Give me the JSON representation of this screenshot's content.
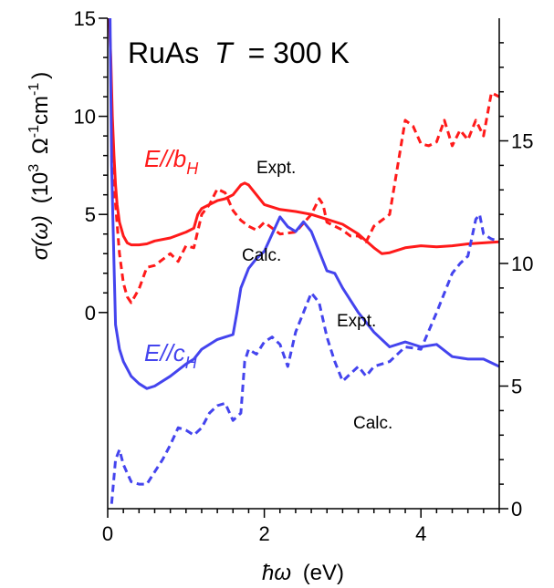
{
  "chart_data": {
    "type": "line",
    "title": "RuAs T = 300 K",
    "title_parts": {
      "material": "RuAs",
      "t_symbol": "T",
      "t_value": "= 300 K"
    },
    "xlabel": "ħω (eV)",
    "xlabel_parts": {
      "symbol": "ħω",
      "unit": "(eV)"
    },
    "ylabel": "σ(ω) (10³ Ω⁻¹cm⁻¹)",
    "ylabel_parts": {
      "symbol": "σ(ω)",
      "open": "(10",
      "exp3": "3",
      "omega": "Ω",
      "exp1": "-1",
      "cm": "cm",
      "exp1b": "-1",
      "close": ")"
    },
    "xlim": [
      0,
      5
    ],
    "ylim_left": [
      -10,
      15
    ],
    "ylim_right": [
      0,
      20
    ],
    "x_ticks": [
      0,
      2,
      4
    ],
    "y_ticks_left": [
      0,
      5,
      10,
      15
    ],
    "y_ticks_right": [
      0,
      5,
      10,
      15
    ],
    "grid": false,
    "legend": "none",
    "colors": {
      "b_axis": "#ff1a1a",
      "c_axis": "#4444ee",
      "axis": "#000000"
    },
    "labels": {
      "b": {
        "main": "E//b",
        "sub": "H"
      },
      "c": {
        "main": "E//c",
        "sub": "H"
      },
      "expt_b": "Expt.",
      "calc_b": "Calc.",
      "expt_c": "Expt.",
      "calc_c": "Calc."
    },
    "series": [
      {
        "axis": "left",
        "color": "#ff1a1a",
        "dash": false,
        "x": [
          0.02,
          0.04,
          0.06,
          0.08,
          0.1,
          0.12,
          0.15,
          0.2,
          0.25,
          0.3,
          0.4,
          0.5,
          0.6,
          0.8,
          1.0,
          1.1,
          1.15,
          1.2,
          1.3,
          1.4,
          1.5,
          1.6,
          1.7,
          1.75,
          1.8,
          1.9,
          2.0,
          2.2,
          2.4,
          2.6,
          2.8,
          3.0,
          3.2,
          3.4,
          3.5,
          3.6,
          3.8,
          4.0,
          4.2,
          4.4,
          4.6,
          4.8,
          5.0
        ],
        "y": [
          15,
          13,
          10,
          8,
          6.5,
          5.5,
          4.6,
          3.9,
          3.55,
          3.45,
          3.45,
          3.5,
          3.65,
          3.8,
          4.1,
          4.3,
          5.0,
          5.3,
          5.5,
          5.7,
          5.8,
          6.0,
          6.5,
          6.6,
          6.5,
          6.0,
          5.5,
          5.25,
          5.15,
          5.0,
          4.75,
          4.5,
          4.0,
          3.3,
          3.0,
          3.05,
          3.3,
          3.4,
          3.35,
          3.4,
          3.5,
          3.55,
          3.6
        ]
      },
      {
        "axis": "left",
        "color": "#ff1a1a",
        "dash": true,
        "x": [
          0.05,
          0.1,
          0.15,
          0.2,
          0.25,
          0.3,
          0.4,
          0.5,
          0.6,
          0.7,
          0.8,
          0.9,
          1.0,
          1.1,
          1.2,
          1.3,
          1.4,
          1.5,
          1.6,
          1.7,
          1.8,
          1.9,
          2.0,
          2.2,
          2.4,
          2.6,
          2.7,
          2.75,
          2.8,
          2.9,
          3.0,
          3.1,
          3.2,
          3.3,
          3.4,
          3.6,
          3.8,
          3.9,
          4.0,
          4.1,
          4.2,
          4.3,
          4.4,
          4.5,
          4.6,
          4.7,
          4.8,
          4.9,
          5.0
        ],
        "y": [
          8.0,
          5.5,
          3.0,
          1.5,
          0.8,
          0.5,
          1.2,
          2.3,
          2.4,
          2.7,
          3.0,
          2.6,
          3.4,
          3.3,
          5.0,
          5.5,
          6.3,
          6.1,
          5.2,
          4.7,
          4.4,
          4.2,
          4.6,
          4.0,
          4.1,
          5.0,
          5.8,
          5.5,
          4.6,
          4.4,
          4.2,
          3.9,
          3.9,
          3.6,
          4.4,
          5.0,
          9.8,
          9.5,
          8.6,
          8.5,
          8.7,
          9.8,
          8.5,
          9.3,
          8.8,
          9.8,
          9.0,
          11.2,
          11.0
        ]
      },
      {
        "axis": "right",
        "color": "#4444ee",
        "dash": false,
        "x": [
          0.03,
          0.05,
          0.08,
          0.1,
          0.15,
          0.2,
          0.3,
          0.4,
          0.5,
          0.6,
          0.8,
          1.0,
          1.1,
          1.2,
          1.4,
          1.5,
          1.6,
          1.65,
          1.7,
          1.8,
          1.9,
          2.0,
          2.1,
          2.2,
          2.3,
          2.4,
          2.5,
          2.6,
          2.7,
          2.8,
          2.9,
          3.0,
          3.2,
          3.4,
          3.6,
          3.8,
          4.0,
          4.2,
          4.4,
          4.6,
          4.8,
          5.0
        ],
        "y": [
          20,
          14,
          10,
          7.5,
          6.5,
          6.0,
          5.4,
          5.1,
          4.9,
          5.0,
          5.4,
          5.9,
          6.1,
          6.5,
          6.9,
          7.0,
          7.1,
          8.0,
          9.0,
          9.8,
          10.2,
          10.5,
          11.2,
          11.9,
          11.5,
          11.3,
          11.7,
          11.3,
          10.5,
          9.7,
          9.6,
          9.0,
          8.0,
          7.2,
          6.6,
          6.8,
          6.6,
          6.7,
          6.2,
          6.1,
          6.1,
          5.8
        ]
      },
      {
        "axis": "right",
        "color": "#4444ee",
        "dash": true,
        "x": [
          0.05,
          0.1,
          0.15,
          0.2,
          0.3,
          0.4,
          0.5,
          0.6,
          0.7,
          0.8,
          0.9,
          1.0,
          1.1,
          1.2,
          1.3,
          1.4,
          1.5,
          1.6,
          1.7,
          1.75,
          1.8,
          1.9,
          2.0,
          2.1,
          2.2,
          2.3,
          2.4,
          2.5,
          2.6,
          2.7,
          2.8,
          2.9,
          3.0,
          3.1,
          3.2,
          3.3,
          3.4,
          3.6,
          3.8,
          4.0,
          4.2,
          4.4,
          4.5,
          4.6,
          4.7,
          4.75,
          4.8,
          4.9,
          5.0
        ],
        "y": [
          0.2,
          2.0,
          2.4,
          1.8,
          1.1,
          1.0,
          1.0,
          1.5,
          2.0,
          2.6,
          3.3,
          3.2,
          3.0,
          3.3,
          3.9,
          4.2,
          4.3,
          3.6,
          3.9,
          6.0,
          6.5,
          6.3,
          6.8,
          7.0,
          6.7,
          5.8,
          7.2,
          8.0,
          8.8,
          8.4,
          7.0,
          6.0,
          5.2,
          5.5,
          5.8,
          5.4,
          5.8,
          6.0,
          6.6,
          6.5,
          8.0,
          9.6,
          10.0,
          10.3,
          11.8,
          12.0,
          11.2,
          11.0,
          10.9
        ]
      }
    ]
  }
}
